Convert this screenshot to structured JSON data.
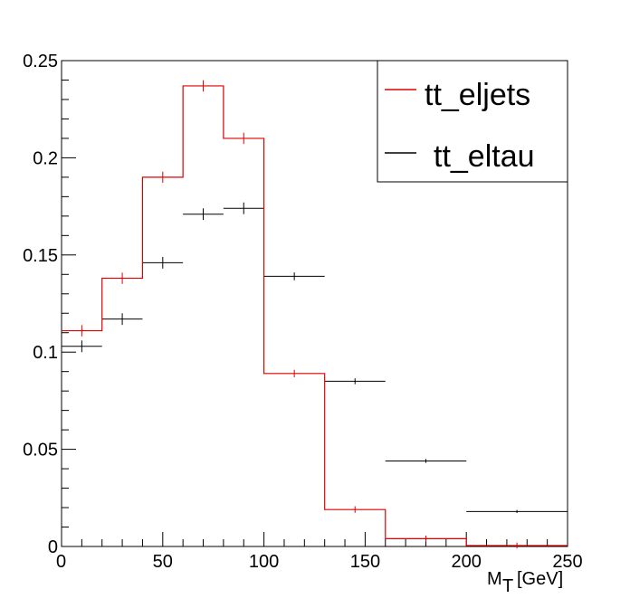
{
  "chart_data": {
    "type": "histogram",
    "xlabel_main": "M",
    "xlabel_sub": "T",
    "xlabel_unit": "[GeV]",
    "xlim": [
      0,
      250
    ],
    "ylim": [
      0,
      0.25
    ],
    "x_ticks": [
      0,
      50,
      100,
      150,
      200,
      250
    ],
    "x_tick_labels": [
      "0",
      "50",
      "100",
      "150",
      "200",
      "250"
    ],
    "y_ticks": [
      0,
      0.05,
      0.1,
      0.15,
      0.2,
      0.25
    ],
    "y_tick_labels": [
      "0",
      "0.05",
      "0.1",
      "0.15",
      "0.2",
      "0.25"
    ],
    "legend_position": "top-right",
    "series": [
      {
        "name": "tt_eljets",
        "color": "#e00000",
        "style": "step",
        "bin_edges": [
          0,
          20,
          40,
          60,
          80,
          100,
          130,
          160,
          200,
          250
        ],
        "values": [
          0.111,
          0.138,
          0.19,
          0.237,
          0.21,
          0.089,
          0.019,
          0.004,
          0.0005
        ],
        "errors": [
          0.0015,
          0.0015,
          0.0015,
          0.0015,
          0.0015,
          0.0005,
          0.0003,
          0.0002,
          0.0001
        ]
      },
      {
        "name": "tt_eltau",
        "color": "#000000",
        "style": "errorbar",
        "bin_edges": [
          0,
          20,
          40,
          60,
          80,
          100,
          130,
          160,
          200,
          250
        ],
        "values": [
          0.103,
          0.117,
          0.146,
          0.171,
          0.174,
          0.139,
          0.085,
          0.044,
          0.018
        ],
        "errors": [
          0.003,
          0.003,
          0.003,
          0.003,
          0.003,
          0.002,
          0.0015,
          0.001,
          0.0008
        ]
      }
    ]
  }
}
